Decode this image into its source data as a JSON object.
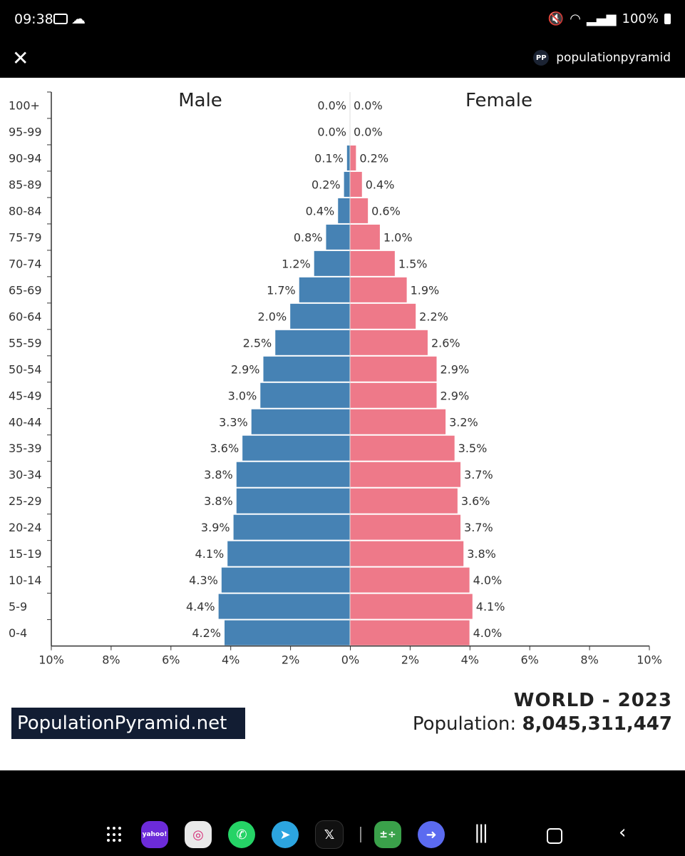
{
  "status_bar": {
    "time": "09:38",
    "battery": "100%"
  },
  "top_bar": {
    "close_glyph": "✕",
    "brand_initials": "PP",
    "brand_name": "populationpyramid"
  },
  "chart_data": {
    "type": "bar",
    "orientation": "horizontal-pyramid",
    "categories": [
      "100+",
      "95-99",
      "90-94",
      "85-89",
      "80-84",
      "75-79",
      "70-74",
      "65-69",
      "60-64",
      "55-59",
      "50-54",
      "45-49",
      "40-44",
      "35-39",
      "30-34",
      "25-29",
      "20-24",
      "15-19",
      "10-14",
      "5-9",
      "0-4"
    ],
    "series": [
      {
        "name": "Male",
        "color": "#4682b4",
        "values": [
          0.0,
          0.0,
          0.1,
          0.2,
          0.4,
          0.8,
          1.2,
          1.7,
          2.0,
          2.5,
          2.9,
          3.0,
          3.3,
          3.6,
          3.8,
          3.8,
          3.9,
          4.1,
          4.3,
          4.4,
          4.2
        ]
      },
      {
        "name": "Female",
        "color": "#ee7989",
        "values": [
          0.0,
          0.0,
          0.2,
          0.4,
          0.6,
          1.0,
          1.5,
          1.9,
          2.2,
          2.6,
          2.9,
          2.9,
          3.2,
          3.5,
          3.7,
          3.6,
          3.7,
          3.8,
          4.0,
          4.1,
          4.0
        ]
      }
    ],
    "xlim": [
      -10,
      10
    ],
    "x_ticks": [
      "10%",
      "8%",
      "6%",
      "4%",
      "2%",
      "0%",
      "2%",
      "4%",
      "6%",
      "8%",
      "10%"
    ],
    "value_suffix": "%",
    "grid": false,
    "legend": "series names printed at top-left and top-right"
  },
  "watermark": "PopulationPyramid.net",
  "title": {
    "region_year": "WORLD - 2023",
    "population_label": "Population:",
    "population_value": "8,045,311,447"
  },
  "dock": {
    "apps": [
      {
        "name": "yahoo-finance",
        "glyph": "yahoo!"
      },
      {
        "name": "instagram",
        "glyph": "◎"
      },
      {
        "name": "whatsapp",
        "glyph": "✆"
      },
      {
        "name": "telegram",
        "glyph": "➤"
      },
      {
        "name": "x",
        "glyph": "𝕏"
      },
      {
        "name": "calculator",
        "glyph": "±÷"
      },
      {
        "name": "tasks",
        "glyph": "➜"
      }
    ]
  },
  "nav": {
    "recents_glyph": "|||",
    "back_glyph": "‹"
  }
}
